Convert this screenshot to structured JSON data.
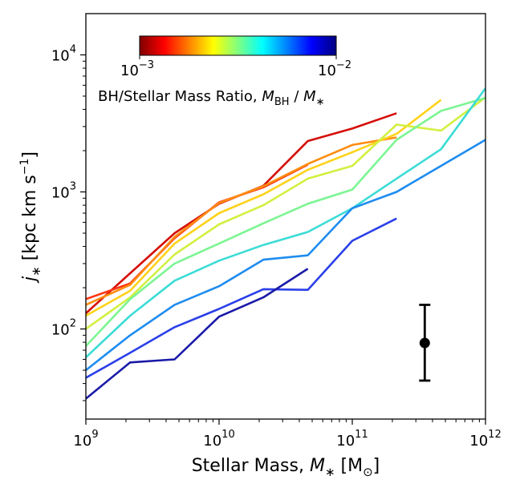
{
  "chart_data": {
    "type": "line",
    "xscale": "log",
    "yscale": "log",
    "xlim": [
      1000000000.0,
      1000000000000.0
    ],
    "ylim": [
      22,
      20000
    ],
    "x_ticks": [
      {
        "value": 1000000000.0,
        "base": "10",
        "exp": "9"
      },
      {
        "value": 10000000000.0,
        "base": "10",
        "exp": "10"
      },
      {
        "value": 100000000000.0,
        "base": "10",
        "exp": "11"
      },
      {
        "value": 1000000000000.0,
        "base": "10",
        "exp": "12"
      }
    ],
    "y_ticks": [
      {
        "value": 100,
        "base": "10",
        "exp": "2"
      },
      {
        "value": 1000,
        "base": "10",
        "exp": "3"
      },
      {
        "value": 10000,
        "base": "10",
        "exp": "4"
      }
    ],
    "xlabel": {
      "text": "Stellar Mass, ",
      "symbol": "M",
      "sub": "∗",
      "unit_open": " [M",
      "unit_sub": "⊙",
      "unit_close": "]"
    },
    "ylabel": {
      "symbol": "j",
      "sub": "∗",
      "unit": " [kpc km s",
      "unit_sup": "−1",
      "unit_close": "]"
    },
    "colorbar": {
      "label": "BH/Stellar Mass Ratio, ",
      "label_symbol_1": "M",
      "label_sub_1": "BH",
      "label_slash": " / ",
      "label_symbol_2": "M",
      "label_sub_2": "∗",
      "min_label": {
        "base": "10",
        "exp": "−3"
      },
      "max_label": {
        "base": "10",
        "exp": "−2"
      },
      "range": [
        0.001,
        0.01
      ],
      "scale": "log",
      "colormap": "jet_r",
      "colors": [
        "#800000",
        "#ff0000",
        "#ff8000",
        "#ffff00",
        "#80ff80",
        "#00ffff",
        "#0080ff",
        "#0000ff",
        "#000080"
      ],
      "location": "top-left"
    },
    "errorbar": {
      "x": 350000000000.0,
      "y": 79,
      "ylow": 42,
      "yhigh": 150,
      "color": "#000000"
    },
    "series": [
      {
        "ratio": 0.00105,
        "color": "#d50e08",
        "points": [
          [
            1000000000.0,
            130
          ],
          [
            2150000000.0,
            255
          ],
          [
            4640000000.0,
            500
          ],
          [
            10000000000.0,
            820
          ],
          [
            21500000000.0,
            1110
          ],
          [
            46400000000.0,
            2350
          ],
          [
            100000000000.0,
            2900
          ],
          [
            215000000000.0,
            3750
          ]
        ]
      },
      {
        "ratio": 0.0013,
        "color": "#ff3614",
        "points": [
          [
            1000000000.0,
            165
          ],
          [
            2150000000.0,
            215
          ],
          [
            4640000000.0,
            460
          ],
          [
            10000000000.0,
            840
          ],
          [
            21500000000.0,
            1080
          ],
          [
            46400000000.0,
            1580
          ]
        ]
      },
      {
        "ratio": 0.0016,
        "color": "#ff8c10",
        "points": [
          [
            1000000000.0,
            150
          ],
          [
            2150000000.0,
            210
          ],
          [
            4640000000.0,
            470
          ],
          [
            10000000000.0,
            830
          ],
          [
            21500000000.0,
            1100
          ],
          [
            46400000000.0,
            1600
          ],
          [
            100000000000.0,
            2200
          ],
          [
            215000000000.0,
            2500
          ]
        ]
      },
      {
        "ratio": 0.002,
        "color": "#ffd21a",
        "points": [
          [
            1000000000.0,
            125
          ],
          [
            2150000000.0,
            190
          ],
          [
            4640000000.0,
            420
          ],
          [
            10000000000.0,
            700
          ],
          [
            21500000000.0,
            960
          ],
          [
            46400000000.0,
            1450
          ],
          [
            100000000000.0,
            1950
          ],
          [
            215000000000.0,
            2650
          ],
          [
            464000000000.0,
            4700
          ]
        ]
      },
      {
        "ratio": 0.0025,
        "color": "#d2f040",
        "points": [
          [
            1000000000.0,
            100
          ],
          [
            2150000000.0,
            170
          ],
          [
            4640000000.0,
            350
          ],
          [
            10000000000.0,
            580
          ],
          [
            21500000000.0,
            800
          ],
          [
            46400000000.0,
            1250
          ],
          [
            100000000000.0,
            1550
          ],
          [
            215000000000.0,
            3100
          ],
          [
            464000000000.0,
            2800
          ],
          [
            1000000000000.0,
            4900
          ]
        ]
      },
      {
        "ratio": 0.0032,
        "color": "#7cf593",
        "points": [
          [
            1000000000.0,
            75
          ],
          [
            2150000000.0,
            165
          ],
          [
            4640000000.0,
            300
          ],
          [
            10000000000.0,
            420
          ],
          [
            21500000000.0,
            590
          ],
          [
            46400000000.0,
            820
          ],
          [
            100000000000.0,
            1040
          ],
          [
            215000000000.0,
            2400
          ],
          [
            464000000000.0,
            3900
          ],
          [
            1000000000000.0,
            4850
          ]
        ]
      },
      {
        "ratio": 0.004,
        "color": "#3cdcd6",
        "points": [
          [
            1000000000.0,
            62
          ],
          [
            2150000000.0,
            125
          ],
          [
            4640000000.0,
            225
          ],
          [
            10000000000.0,
            315
          ],
          [
            21500000000.0,
            410
          ],
          [
            46400000000.0,
            510
          ],
          [
            100000000000.0,
            760
          ],
          [
            215000000000.0,
            1250
          ],
          [
            464000000000.0,
            2050
          ],
          [
            1000000000000.0,
            5700
          ]
        ]
      },
      {
        "ratio": 0.005,
        "color": "#1e8cf0",
        "points": [
          [
            1000000000.0,
            50
          ],
          [
            2150000000.0,
            90
          ],
          [
            4640000000.0,
            150
          ],
          [
            10000000000.0,
            205
          ],
          [
            21500000000.0,
            320
          ],
          [
            46400000000.0,
            345
          ],
          [
            100000000000.0,
            760
          ],
          [
            215000000000.0,
            1000
          ],
          [
            464000000000.0,
            1550
          ],
          [
            1000000000000.0,
            2400
          ]
        ]
      },
      {
        "ratio": 0.0063,
        "color": "#2b40e8",
        "points": [
          [
            1000000000.0,
            44
          ],
          [
            2150000000.0,
            67
          ],
          [
            4640000000.0,
            103
          ],
          [
            10000000000.0,
            140
          ],
          [
            21500000000.0,
            195
          ],
          [
            46400000000.0,
            193
          ],
          [
            100000000000.0,
            440
          ],
          [
            215000000000.0,
            640
          ]
        ]
      },
      {
        "ratio": 0.008,
        "color": "#1a1aa8",
        "points": [
          [
            1000000000.0,
            31
          ],
          [
            2150000000.0,
            57
          ],
          [
            4640000000.0,
            60
          ],
          [
            10000000000.0,
            123
          ],
          [
            21500000000.0,
            170
          ],
          [
            46400000000.0,
            275
          ]
        ]
      }
    ]
  }
}
